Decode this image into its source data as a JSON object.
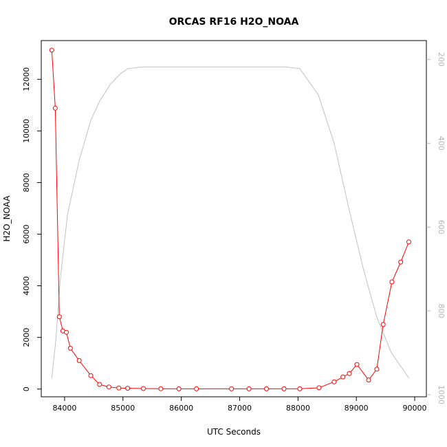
{
  "chart_data": {
    "type": "line",
    "title": "ORCAS RF16 H2O_NOAA",
    "xlabel": "UTC Seconds",
    "ylabel": "H2O_NOAA",
    "xlim": [
      83600,
      90200
    ],
    "ylim": [
      -300,
      13500
    ],
    "y2lim": [
      1005,
      155
    ],
    "x_ticks": [
      84000,
      85000,
      86000,
      87000,
      88000,
      89000,
      90000
    ],
    "x_tick_labels": [
      "84000",
      "85000",
      "86000",
      "87000",
      "88000",
      "89000",
      "90000"
    ],
    "y_ticks": [
      0,
      2000,
      4000,
      6000,
      8000,
      10000,
      12000
    ],
    "y_tick_labels": [
      "0",
      "2000",
      "4000",
      "6000",
      "8000",
      "10000",
      "12000"
    ],
    "y2_ticks": [
      200,
      400,
      600,
      800,
      1000
    ],
    "y2_tick_labels": [
      "200",
      "400",
      "600",
      "800",
      "1000"
    ],
    "grid": false,
    "colors": {
      "h2o": "#ff0000",
      "pressure": "#c0c0c0",
      "axis": "#000000",
      "y2_axis": "#b4b4b4"
    },
    "series": [
      {
        "key": "h2o",
        "axis": "left",
        "marker": "open-circle",
        "x": [
          83780,
          83840,
          83910,
          83970,
          84030,
          84100,
          84250,
          84450,
          84600,
          84760,
          84930,
          85080,
          85350,
          85650,
          85960,
          86260,
          86860,
          87160,
          87460,
          87760,
          88030,
          88360,
          88620,
          88770,
          88880,
          89010,
          89210,
          89350,
          89460,
          89610,
          89760,
          89900
        ],
        "y": [
          13130,
          10880,
          2800,
          2250,
          2200,
          1580,
          1100,
          520,
          180,
          80,
          40,
          30,
          20,
          15,
          10,
          10,
          10,
          10,
          10,
          10,
          10,
          50,
          280,
          470,
          600,
          950,
          350,
          770,
          2500,
          4150,
          4920,
          5700
        ]
      },
      {
        "key": "pressure",
        "axis": "right",
        "marker": "none",
        "x": [
          83780,
          83850,
          83930,
          84050,
          84250,
          84450,
          84600,
          84780,
          84950,
          85080,
          85330,
          86000,
          87000,
          87800,
          88030,
          88350,
          88620,
          88870,
          89120,
          89350,
          89600,
          89900
        ],
        "y": [
          960,
          870,
          720,
          570,
          440,
          345,
          300,
          260,
          235,
          222,
          218,
          218,
          218,
          218,
          222,
          285,
          400,
          555,
          700,
          815,
          900,
          960
        ]
      }
    ]
  }
}
